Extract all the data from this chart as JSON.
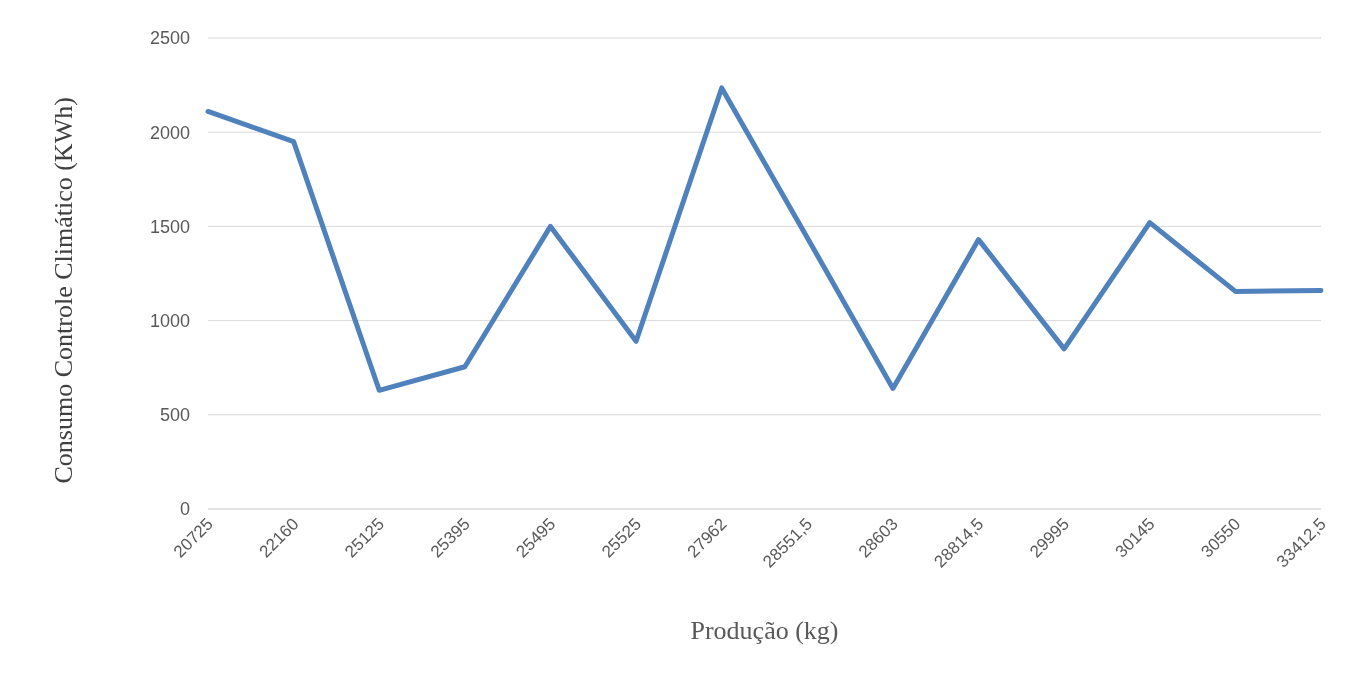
{
  "chart_data": {
    "type": "line",
    "xlabel": "Produção (kg)",
    "ylabel": "Consumo Controle Climático (KWh)",
    "categories": [
      "20725",
      "22160",
      "25125",
      "25395",
      "25495",
      "25525",
      "27962",
      "28551,5",
      "28603",
      "28814,5",
      "29995",
      "30145",
      "30550",
      "33412,5"
    ],
    "series": [
      {
        "color": "#4f81bd",
        "values": [
          2110,
          1950,
          630,
          755,
          1500,
          890,
          2235,
          1440,
          640,
          1430,
          850,
          1520,
          1155,
          1160
        ]
      }
    ],
    "ylim": [
      0,
      2500
    ],
    "yticks": [
      0,
      500,
      1000,
      1500,
      2000,
      2500
    ],
    "grid": "y",
    "legend": false,
    "marker": "none",
    "line_style": "solid"
  }
}
